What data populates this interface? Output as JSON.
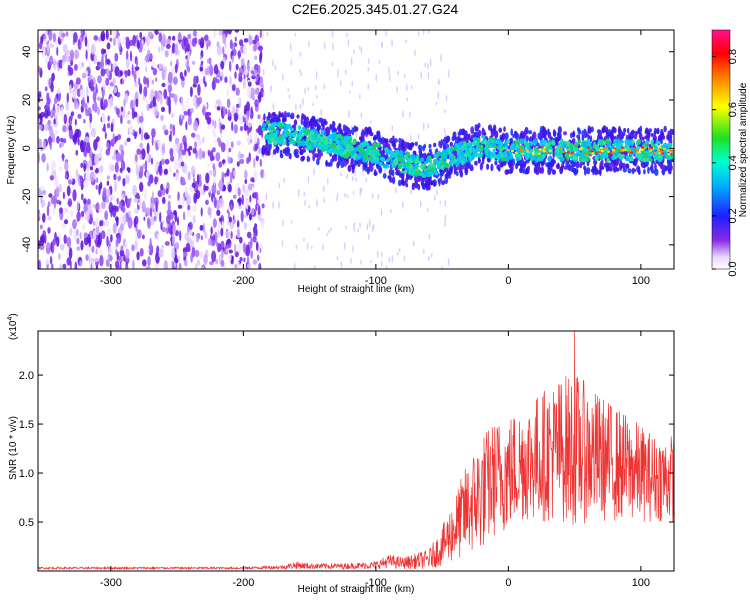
{
  "title": "C2E6.2025.345.01.27.G24",
  "chart_data": [
    {
      "type": "heatmap",
      "name": "spectrogram",
      "xlabel": "Height of straight line (km)",
      "ylabel": "Frequency (Hz)",
      "xlim": [
        -355,
        125
      ],
      "ylim": [
        -50,
        49
      ],
      "xticks": [
        -300,
        -200,
        -100,
        0,
        100
      ],
      "yticks": [
        -40,
        -20,
        0,
        20,
        40
      ],
      "colorbar": {
        "label": "Normalized spectral amplitude",
        "range": [
          0,
          0.9
        ],
        "ticks": [
          0.0,
          0.2,
          0.4,
          0.6,
          0.8
        ]
      },
      "noise_region_x": [
        -355,
        -185
      ],
      "signal_track": [
        {
          "x": -185,
          "freq": 7
        },
        {
          "x": -150,
          "freq": 4
        },
        {
          "x": -100,
          "freq": -2
        },
        {
          "x": -80,
          "freq": -6
        },
        {
          "x": -60,
          "freq": -8
        },
        {
          "x": -40,
          "freq": -3
        },
        {
          "x": -20,
          "freq": 1
        },
        {
          "x": 0,
          "freq": -1
        },
        {
          "x": 50,
          "freq": -1
        },
        {
          "x": 120,
          "freq": -1
        }
      ]
    },
    {
      "type": "line",
      "name": "snr",
      "xlabel": "Height of straight line (km)",
      "ylabel": "SNR (10 * v/v)",
      "exponent_label": "(x10",
      "exponent": "4",
      "xlim": [
        -355,
        125
      ],
      "ylim": [
        0,
        2.45
      ],
      "xticks": [
        -300,
        -200,
        -100,
        0,
        100
      ],
      "yticks": [
        0.5,
        1.0,
        1.5,
        2.0
      ],
      "ytick_labels": [
        "0.5",
        "1.0",
        "1.5",
        "2.0"
      ],
      "series": [
        {
          "name": "SNR",
          "color": "#ee3333",
          "x": [
            -355,
            -300,
            -200,
            -170,
            -160,
            -150,
            -120,
            -100,
            -90,
            -80,
            -60,
            -50,
            -40,
            -30,
            -20,
            -10,
            0,
            10,
            20,
            30,
            40,
            50,
            60,
            70,
            80,
            90,
            100,
            110,
            125
          ],
          "mean": [
            0.03,
            0.03,
            0.03,
            0.04,
            0.06,
            0.05,
            0.05,
            0.06,
            0.1,
            0.08,
            0.12,
            0.25,
            0.45,
            0.65,
            0.8,
            0.95,
            1.0,
            1.1,
            1.15,
            1.2,
            1.25,
            1.25,
            1.2,
            1.15,
            1.1,
            1.05,
            1.0,
            0.95,
            0.95
          ],
          "amp": [
            0.01,
            0.01,
            0.01,
            0.02,
            0.04,
            0.03,
            0.03,
            0.04,
            0.07,
            0.06,
            0.1,
            0.2,
            0.35,
            0.5,
            0.6,
            0.6,
            0.6,
            0.6,
            0.65,
            0.7,
            0.75,
            0.8,
            0.7,
            0.65,
            0.6,
            0.55,
            0.5,
            0.45,
            0.45
          ],
          "peak": {
            "x": 50,
            "value": 2.45
          }
        }
      ]
    }
  ],
  "colors": {
    "line": "#ee3333",
    "noise": "#7020e8",
    "axis": "#000000"
  }
}
